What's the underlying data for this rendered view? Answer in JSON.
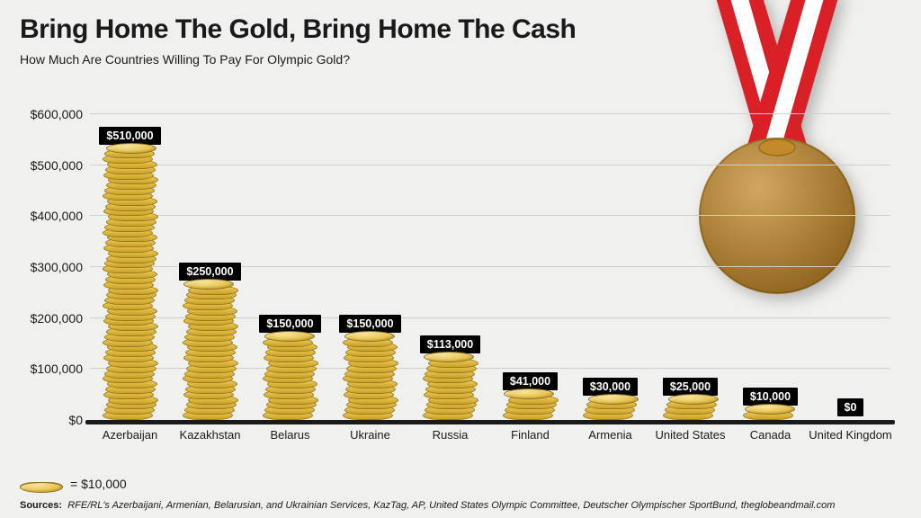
{
  "title": "Bring Home The Gold, Bring Home The Cash",
  "subtitle": "How Much Are Countries Willing To Pay For Olympic Gold?",
  "legend_text": "= $10,000",
  "legend_unit_value": 10000,
  "sources_label": "Sources:",
  "sources_text": "RFE/RL's Azerbaijani, Armenian, Belarusian, and Ukrainian Services, KazTag, AP, United States Olympic Committee, Deutscher Olympischer SportBund, theglobeandmail.com",
  "medal_colors": {
    "ribbon_red": "#d92027",
    "ribbon_white": "#ffffff",
    "disc_fill": "#c38a2a",
    "disc_stroke": "#9a6c1c"
  },
  "chart": {
    "type": "bar",
    "y_min": 0,
    "y_max": 600000,
    "y_tick_step": 100000,
    "y_tick_labels": [
      "$0",
      "$100,000",
      "$200,000",
      "$300,000",
      "$400,000",
      "$500,000",
      "$600,000"
    ],
    "grid_color": "#cfcfcd",
    "axis_color": "#1a1a1a",
    "bar_coin_colors": {
      "top_highlight": "#f7e29a",
      "top_mid": "#e7c34b",
      "side_light": "#f3d06a",
      "side_mid": "#e0bb42",
      "side_dark": "#c9a12c",
      "outline": "#9a7a1a"
    },
    "value_label_bg": "#000000",
    "value_label_fg": "#ffffff",
    "background_color": "#f0f0ef",
    "title_fontsize": 30,
    "subtitle_fontsize": 14,
    "axis_fontsize": 14,
    "value_fontsize": 12.5,
    "xlabel_fontsize": 13,
    "bars": [
      {
        "country": "Azerbaijan",
        "value": 510000,
        "label": "$510,000"
      },
      {
        "country": "Kazakhstan",
        "value": 250000,
        "label": "$250,000"
      },
      {
        "country": "Belarus",
        "value": 150000,
        "label": "$150,000"
      },
      {
        "country": "Ukraine",
        "value": 150000,
        "label": "$150,000"
      },
      {
        "country": "Russia",
        "value": 113000,
        "label": "$113,000"
      },
      {
        "country": "Finland",
        "value": 41000,
        "label": "$41,000"
      },
      {
        "country": "Armenia",
        "value": 30000,
        "label": "$30,000"
      },
      {
        "country": "United States",
        "value": 25000,
        "label": "$25,000"
      },
      {
        "country": "Canada",
        "value": 10000,
        "label": "$10,000"
      },
      {
        "country": "United Kingdom",
        "value": 0,
        "label": "$0"
      }
    ]
  }
}
